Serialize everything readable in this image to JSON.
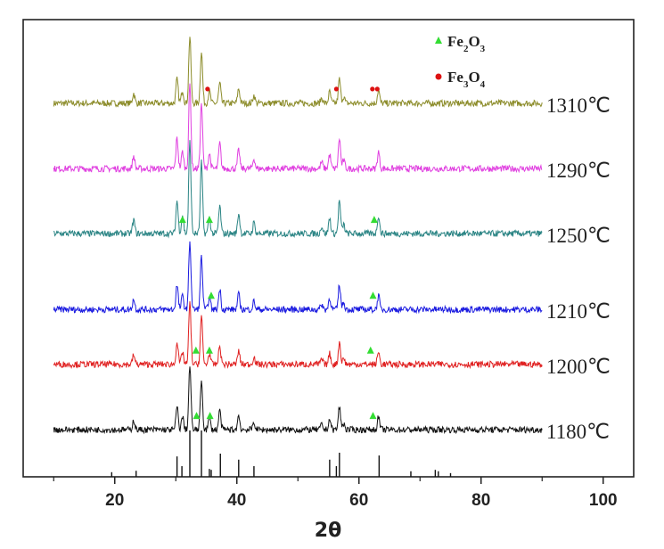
{
  "chart_data": {
    "type": "line",
    "title": "",
    "xlabel": "2θ",
    "ylabel": "",
    "xlim": [
      5,
      105
    ],
    "ylim": [
      0,
      1000
    ],
    "xticks": [
      20,
      40,
      60,
      80,
      100
    ],
    "minor_xticks": [
      10,
      30,
      50,
      70,
      90
    ],
    "grid": false,
    "x_range_traces": [
      10,
      90
    ],
    "peaks": [
      {
        "x": 23.1,
        "rel": 0.15
      },
      {
        "x": 30.2,
        "rel": 0.36
      },
      {
        "x": 31.1,
        "rel": 0.2
      },
      {
        "x": 32.3,
        "rel": 1.0
      },
      {
        "x": 34.2,
        "rel": 0.78
      },
      {
        "x": 35.5,
        "rel": 0.18
      },
      {
        "x": 37.2,
        "rel": 0.3
      },
      {
        "x": 40.3,
        "rel": 0.22
      },
      {
        "x": 42.8,
        "rel": 0.12
      },
      {
        "x": 53.9,
        "rel": 0.08
      },
      {
        "x": 55.2,
        "rel": 0.17
      },
      {
        "x": 56.8,
        "rel": 0.36
      },
      {
        "x": 57.5,
        "rel": 0.1
      },
      {
        "x": 63.2,
        "rel": 0.2
      }
    ],
    "series": [
      {
        "name": "1310℃",
        "color": "#8c8c2a",
        "baseline": 817,
        "max_height": 146,
        "markers": [
          {
            "type": "Fe3O4",
            "x": 35.2
          },
          {
            "type": "Fe3O4",
            "x": 56.3
          },
          {
            "type": "Fe3O4",
            "x": 62.2
          },
          {
            "type": "Fe3O4",
            "x": 63.0
          }
        ]
      },
      {
        "name": "1290℃",
        "color": "#e040e0",
        "baseline": 674,
        "max_height": 185,
        "markers": []
      },
      {
        "name": "1250℃",
        "color": "#2a8484",
        "baseline": 532,
        "max_height": 200,
        "markers": [
          {
            "type": "Fe2O3",
            "x": 31.1
          },
          {
            "type": "Fe2O3",
            "x": 35.5
          },
          {
            "type": "Fe2O3",
            "x": 62.5
          }
        ]
      },
      {
        "name": "1210℃",
        "color": "#1a1ae0",
        "baseline": 366,
        "max_height": 150,
        "markers": [
          {
            "type": "Fe2O3",
            "x": 35.8
          },
          {
            "type": "Fe2O3",
            "x": 62.3
          }
        ]
      },
      {
        "name": "1200℃",
        "color": "#e02020",
        "baseline": 246,
        "max_height": 135,
        "markers": [
          {
            "type": "Fe2O3",
            "x": 33.3
          },
          {
            "type": "Fe2O3",
            "x": 35.5
          },
          {
            "type": "Fe2O3",
            "x": 61.9
          }
        ]
      },
      {
        "name": "1180℃",
        "color": "#111111",
        "baseline": 103,
        "max_height": 140,
        "markers": [
          {
            "type": "Fe2O3",
            "x": 33.4
          },
          {
            "type": "Fe2O3",
            "x": 35.6
          },
          {
            "type": "Fe2O3",
            "x": 62.3
          }
        ]
      }
    ],
    "reference_pattern": [
      {
        "x": 19.5,
        "h": 10
      },
      {
        "x": 23.5,
        "h": 13
      },
      {
        "x": 30.2,
        "h": 44
      },
      {
        "x": 31.0,
        "h": 23
      },
      {
        "x": 32.3,
        "h": 100
      },
      {
        "x": 34.2,
        "h": 100
      },
      {
        "x": 35.5,
        "h": 17
      },
      {
        "x": 35.8,
        "h": 15
      },
      {
        "x": 37.3,
        "h": 50
      },
      {
        "x": 40.3,
        "h": 37
      },
      {
        "x": 42.8,
        "h": 23
      },
      {
        "x": 55.2,
        "h": 37
      },
      {
        "x": 56.3,
        "h": 23
      },
      {
        "x": 56.8,
        "h": 52
      },
      {
        "x": 63.3,
        "h": 46
      },
      {
        "x": 68.5,
        "h": 12
      },
      {
        "x": 72.5,
        "h": 15
      },
      {
        "x": 73.0,
        "h": 12
      },
      {
        "x": 75.0,
        "h": 8
      }
    ],
    "legend": {
      "position": "top-right",
      "entries": [
        {
          "label": "Fe2O3",
          "base": "Fe",
          "s1": "2",
          "mid": "O",
          "s2": "3",
          "marker": "triangle",
          "color": "#33dd33"
        },
        {
          "label": "Fe3O4",
          "base": "Fe",
          "s1": "3",
          "mid": "O",
          "s2": "4",
          "marker": "circle",
          "color": "#dd1111"
        }
      ]
    }
  }
}
